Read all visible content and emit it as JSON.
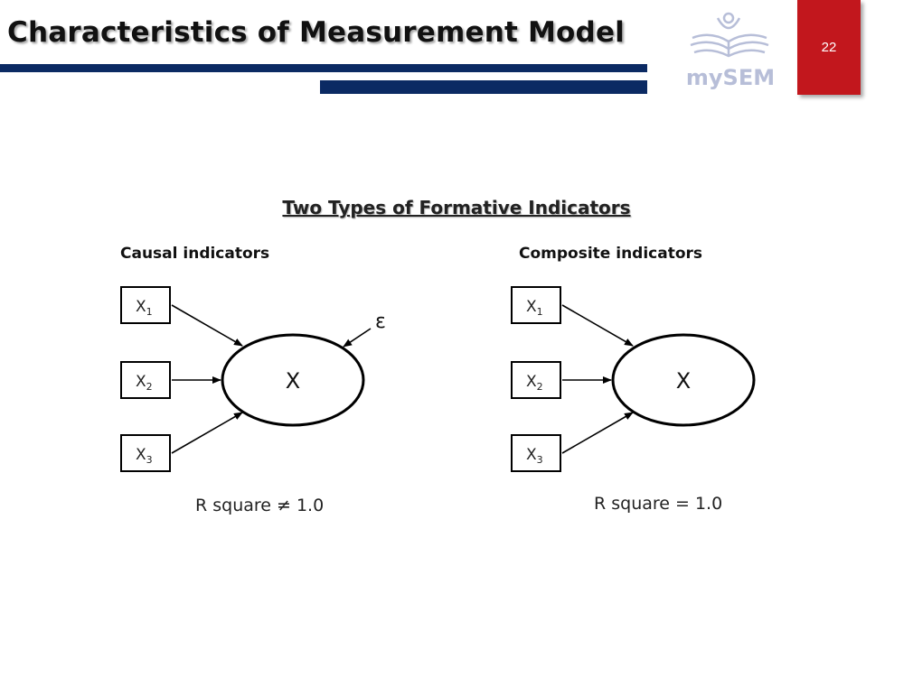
{
  "slide": {
    "title": "Characteristics of Measurement Model",
    "page_number": "22",
    "logo_text": "mySEM"
  },
  "diagram": {
    "heading": "Two Types of Formative Indicators",
    "left": {
      "label": "Causal indicators",
      "indicators": [
        {
          "base": "X",
          "sub": "1"
        },
        {
          "base": "X",
          "sub": "2"
        },
        {
          "base": "X",
          "sub": "3"
        }
      ],
      "construct": "X",
      "error": "ε",
      "caption": "R square ≠ 1.0"
    },
    "right": {
      "label": "Composite indicators",
      "indicators": [
        {
          "base": "X",
          "sub": "1"
        },
        {
          "base": "X",
          "sub": "2"
        },
        {
          "base": "X",
          "sub": "3"
        }
      ],
      "construct": "X",
      "caption": "R square = 1.0"
    }
  }
}
